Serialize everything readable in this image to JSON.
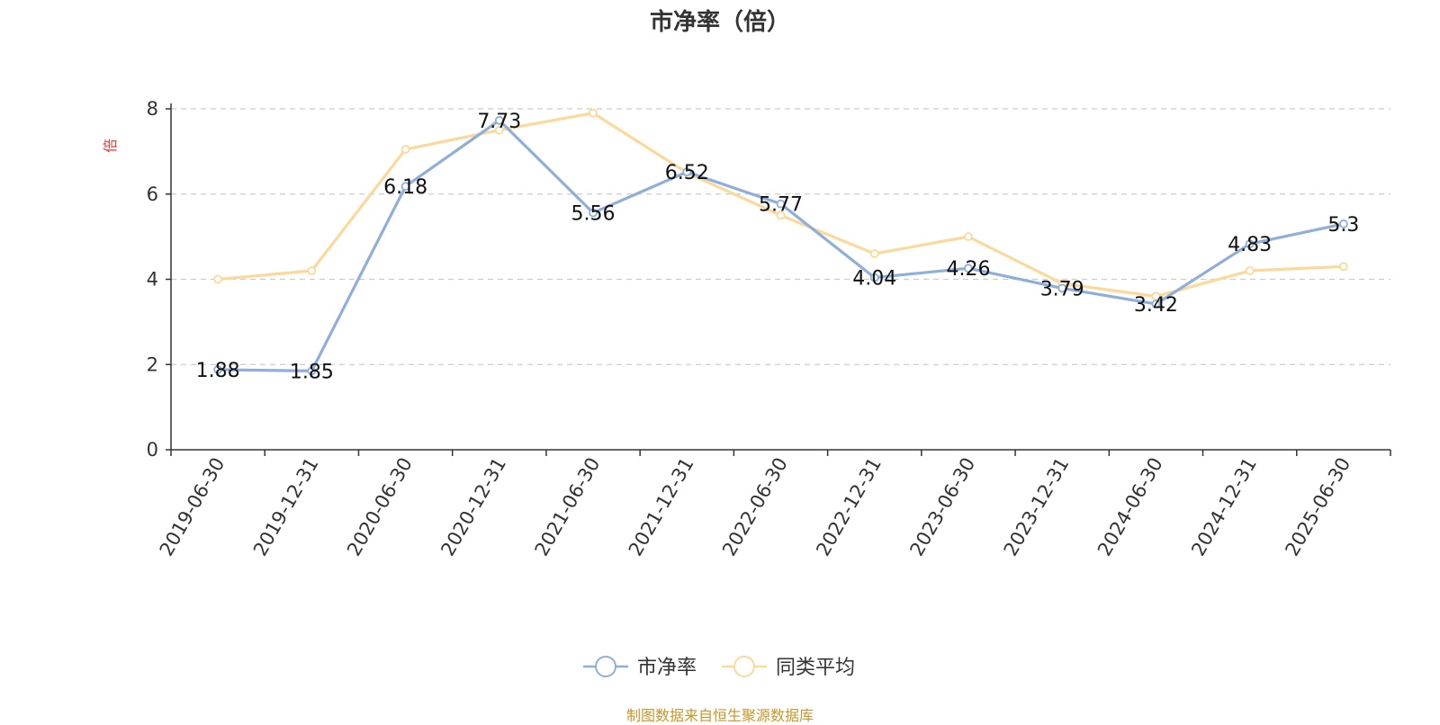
{
  "chart_data": {
    "type": "line",
    "title": "市净率（倍）",
    "ylabel": "倍",
    "xlabel": "",
    "ylim": [
      0,
      8
    ],
    "yticks": [
      0,
      2,
      4,
      6,
      8
    ],
    "grid": true,
    "legend_position": "bottom",
    "categories": [
      "2019-06-30",
      "2019-12-31",
      "2020-06-30",
      "2020-12-31",
      "2021-06-30",
      "2021-12-31",
      "2022-06-30",
      "2022-12-31",
      "2023-06-30",
      "2023-12-31",
      "2024-06-30",
      "2024-12-31",
      "2025-06-30"
    ],
    "series": [
      {
        "name": "市净率",
        "color": "#8eaedb",
        "values": [
          1.88,
          1.85,
          6.18,
          7.73,
          5.56,
          6.52,
          5.77,
          4.04,
          4.26,
          3.79,
          3.42,
          4.83,
          5.3
        ],
        "labels": [
          "1.88",
          "1.85",
          "6.18",
          "7.73",
          "5.56",
          "6.52",
          "5.77",
          "4.04",
          "4.26",
          "3.79",
          "3.42",
          "4.83",
          "5.3"
        ]
      },
      {
        "name": "同类平均",
        "color": "#fcd99a",
        "values": [
          4.0,
          4.2,
          7.05,
          7.5,
          7.9,
          6.5,
          5.5,
          4.6,
          5.0,
          3.9,
          3.6,
          4.2,
          4.3
        ]
      }
    ]
  },
  "footer": {
    "source": "制图数据来自恒生聚源数据库"
  }
}
